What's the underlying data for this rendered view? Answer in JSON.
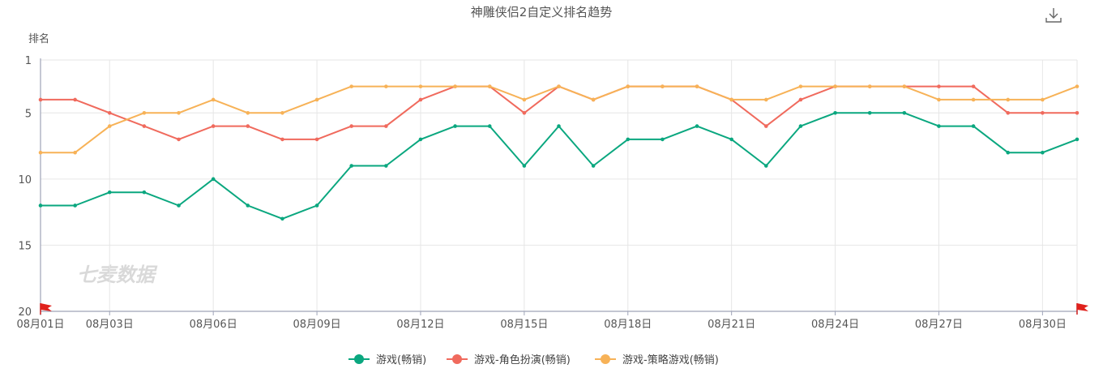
{
  "toolbar": {
    "download_icon": "download-icon"
  },
  "watermark": "七麦数据",
  "chart_data": {
    "type": "line",
    "title": "神雕侠侣2自定义排名趋势",
    "ylabel": "排名",
    "xlabel": "",
    "y_inverted": true,
    "ylim": [
      1,
      20
    ],
    "y_ticks": [
      1,
      5,
      10,
      15,
      20
    ],
    "x": [
      "08月01日",
      "08月02日",
      "08月03日",
      "08月04日",
      "08月05日",
      "08月06日",
      "08月07日",
      "08月08日",
      "08月09日",
      "08月10日",
      "08月11日",
      "08月12日",
      "08月13日",
      "08月14日",
      "08月15日",
      "08月16日",
      "08月17日",
      "08月18日",
      "08月19日",
      "08月20日",
      "08月21日",
      "08月22日",
      "08月23日",
      "08月24日",
      "08月25日",
      "08月26日",
      "08月27日",
      "08月28日",
      "08月29日",
      "08月30日",
      "08月31日"
    ],
    "x_tick_labels": [
      "08月01日",
      "08月03日",
      "08月06日",
      "08月09日",
      "08月12日",
      "08月15日",
      "08月18日",
      "08月21日",
      "08月24日",
      "08月27日",
      "08月30日"
    ],
    "grid": true,
    "legend_position": "bottom",
    "series": [
      {
        "name": "游戏(畅销)",
        "color": "#0aa77f",
        "values": [
          12,
          12,
          11,
          11,
          12,
          10,
          12,
          13,
          12,
          9,
          9,
          7,
          6,
          6,
          9,
          6,
          9,
          7,
          7,
          6,
          7,
          9,
          6,
          5,
          5,
          5,
          6,
          6,
          8,
          8,
          7
        ]
      },
      {
        "name": "游戏-角色扮演(畅销)",
        "color": "#f06a5d",
        "values": [
          4,
          4,
          5,
          6,
          7,
          6,
          6,
          7,
          7,
          6,
          6,
          4,
          3,
          3,
          5,
          3,
          4,
          3,
          3,
          3,
          4,
          6,
          4,
          3,
          3,
          3,
          3,
          3,
          5,
          5,
          5
        ]
      },
      {
        "name": "游戏-策略游戏(畅销)",
        "color": "#f7b257",
        "values": [
          8,
          8,
          6,
          5,
          5,
          4,
          5,
          5,
          4,
          3,
          3,
          3,
          3,
          3,
          4,
          3,
          4,
          3,
          3,
          3,
          4,
          4,
          3,
          3,
          3,
          3,
          4,
          4,
          4,
          4,
          3
        ]
      }
    ]
  }
}
